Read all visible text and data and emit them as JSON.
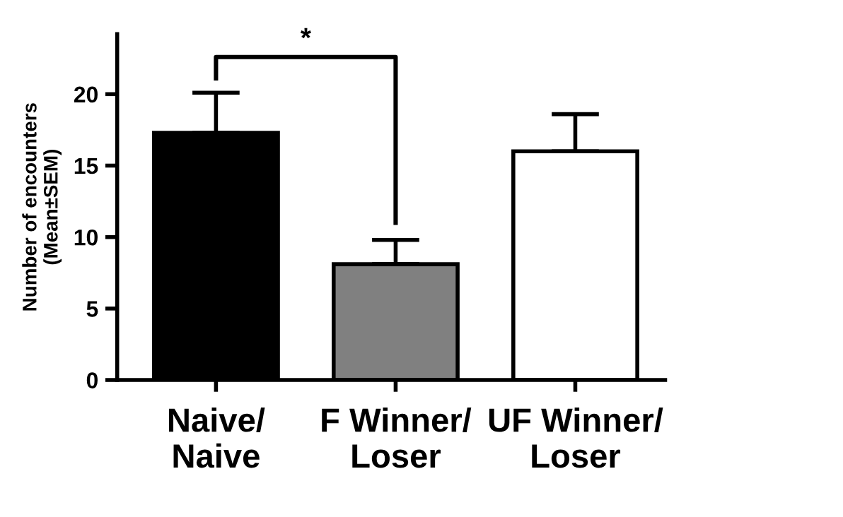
{
  "chart_data": {
    "type": "bar",
    "ylabel": "Number of encounters\n(Mean±SEM)",
    "categories": [
      "Naive/\nNaive",
      "F Winner/\nLoser",
      "UF Winner/\nLoser"
    ],
    "values": [
      17.3,
      8.1,
      16.0
    ],
    "colors": [
      "#000000",
      "#808080",
      "#ffffff"
    ],
    "errors": [
      [
        17.3,
        20.1
      ],
      [
        8.1,
        9.8
      ],
      [
        16.0,
        18.6
      ]
    ],
    "ylim": [
      0,
      24.2
    ],
    "yticks": [
      0,
      5,
      10,
      15,
      20
    ],
    "grid": false,
    "annotations": [
      "*"
    ]
  }
}
